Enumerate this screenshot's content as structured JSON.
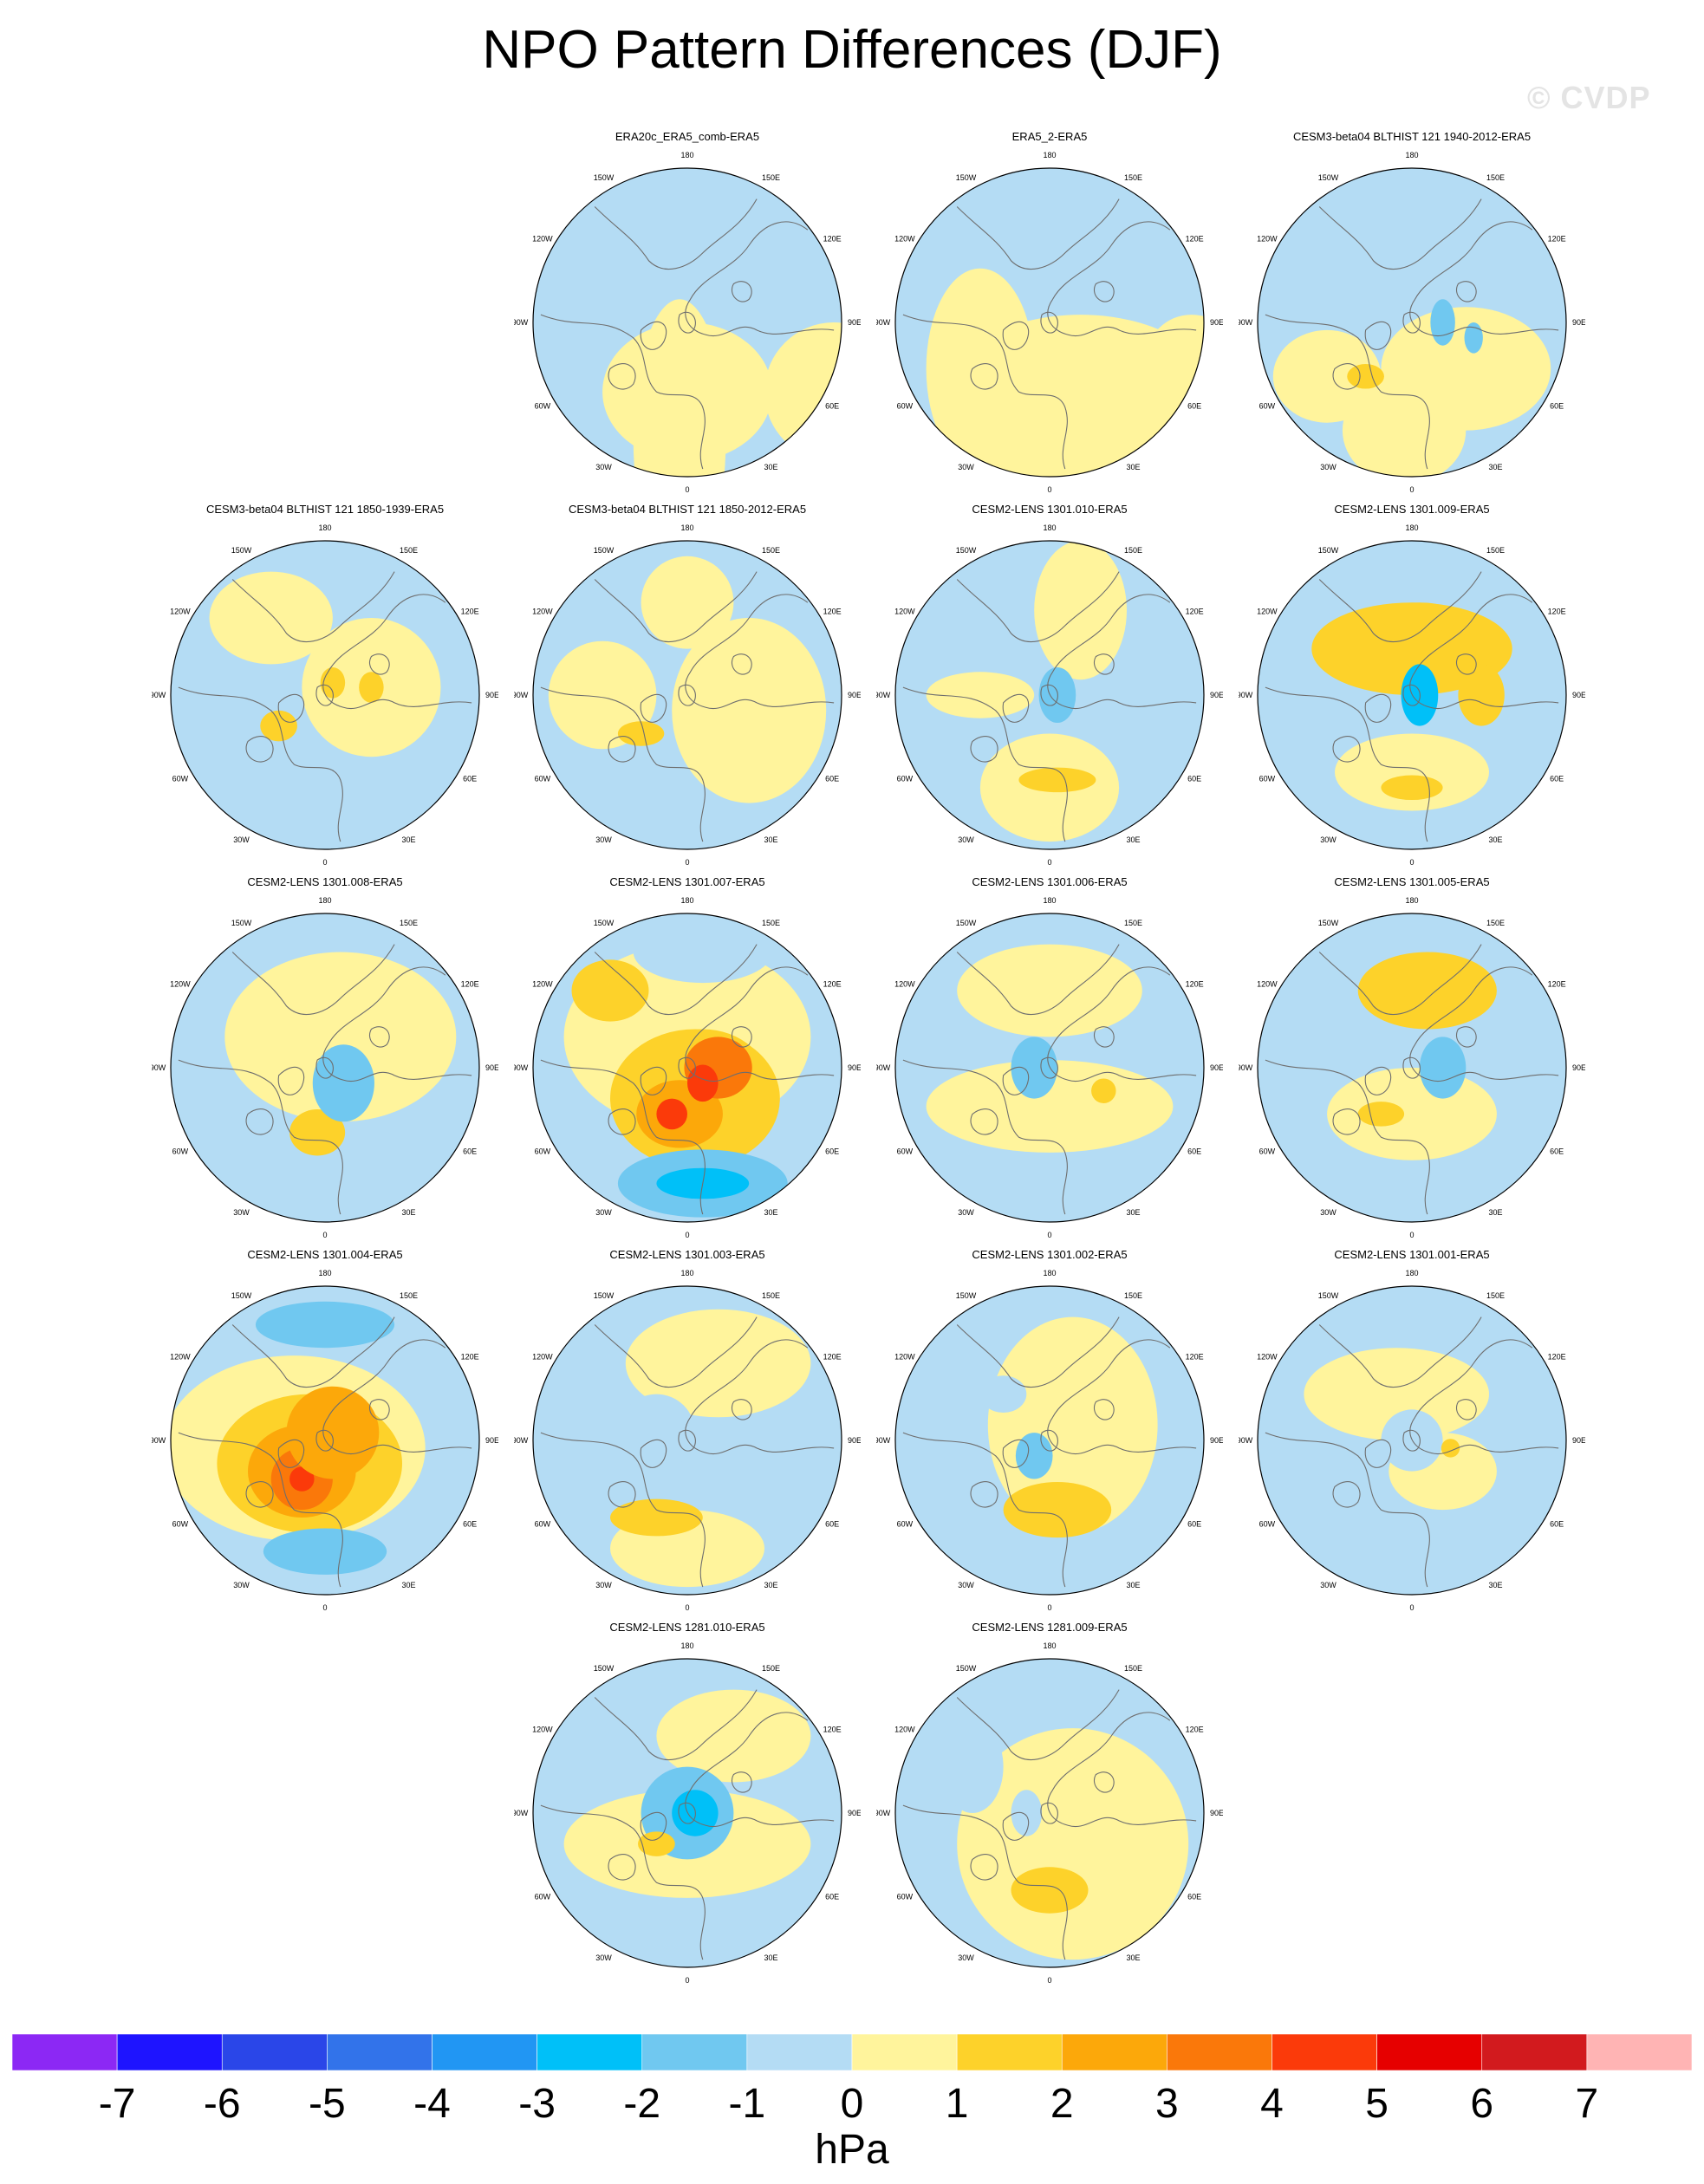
{
  "title": "NPO Pattern Differences (DJF)",
  "watermark": "© CVDP",
  "units": "hPa",
  "colorbar": {
    "labels": [
      "-7",
      "-6",
      "-5",
      "-4",
      "-3",
      "-2",
      "-1",
      "0",
      "1",
      "2",
      "3",
      "4",
      "5",
      "6",
      "7"
    ],
    "colors": [
      "#8c28f4",
      "#1e14ff",
      "#2a46e8",
      "#3273ea",
      "#2196f3",
      "#00c0f8",
      "#70c8f0",
      "#b4dcf4",
      "#fff49c",
      "#fdd22a",
      "#fca80a",
      "#fa780a",
      "#fb3a0a",
      "#e60000",
      "#d21a1e",
      "#ffb4b4"
    ]
  },
  "lon_labels": [
    "180",
    "150E",
    "120E",
    "90E",
    "60E",
    "30E",
    "0",
    "30W",
    "60W",
    "90W",
    "120W",
    "150W"
  ],
  "colors": {
    "land_line": "#6e6e6e",
    "rim": "#000000"
  },
  "panels": [
    {
      "title": "ERA20c_ERA5_comb-ERA5",
      "blobs": [
        [
          0.85,
          0.0,
          0.45,
          0.55,
          0.45,
          0
        ],
        [
          0.0,
          -0.05,
          0.75,
          0.3,
          0.9,
          0
        ],
        [
          0.75,
          0.95,
          0.45,
          0.45,
          0.45,
          0
        ]
      ]
    },
    {
      "title": "ERA5_2-ERA5",
      "blobs": [
        [
          0.9,
          0.2,
          0.5,
          0.9,
          0.55,
          0
        ],
        [
          0.5,
          -0.45,
          0.3,
          0.35,
          0.65,
          0
        ],
        [
          0.1,
          0.92,
          0.25,
          0.3,
          0.3,
          0
        ]
      ]
    },
    {
      "title": "CESM3-beta04 BLTHIST 121 1940-2012-ERA5",
      "blobs": [
        [
          0.85,
          0.35,
          0.3,
          0.55,
          0.4,
          0
        ],
        [
          0.85,
          -0.55,
          0.35,
          0.35,
          0.3,
          0
        ],
        [
          0.9,
          -0.05,
          0.7,
          0.4,
          0.35,
          0
        ],
        [
          1.6,
          -0.3,
          0.35,
          0.12,
          0.08,
          0
        ],
        [
          -1.2,
          0.2,
          0.0,
          0.08,
          0.15,
          0
        ],
        [
          -1.5,
          0.4,
          0.1,
          0.06,
          0.1,
          0
        ]
      ]
    },
    {
      "title": "CESM3-beta04 BLTHIST 121 1850-1939-ERA5",
      "blobs": [
        [
          -0.8,
          -0.1,
          0.68,
          0.3,
          0.1,
          0
        ],
        [
          0.9,
          0.3,
          -0.05,
          0.45,
          0.45,
          0
        ],
        [
          0.9,
          -0.35,
          -0.5,
          0.4,
          0.3,
          0
        ],
        [
          1.1,
          -0.3,
          0.2,
          0.12,
          0.1,
          0
        ],
        [
          1.1,
          0.05,
          -0.08,
          0.08,
          0.1,
          0
        ],
        [
          1.1,
          0.3,
          -0.05,
          0.08,
          0.1,
          0
        ]
      ]
    },
    {
      "title": "CESM3-beta04 BLTHIST 121 1850-2012-ERA5",
      "blobs": [
        [
          0.9,
          0.4,
          0.1,
          0.5,
          0.6,
          0
        ],
        [
          0.9,
          -0.55,
          0.0,
          0.35,
          0.35,
          0
        ],
        [
          0.8,
          0.0,
          -0.6,
          0.3,
          0.3,
          0
        ],
        [
          1.1,
          -0.3,
          0.25,
          0.15,
          0.08,
          0
        ]
      ]
    },
    {
      "title": "CESM2-LENS 1301.010-ERA5",
      "blobs": [
        [
          0.9,
          0.0,
          0.6,
          0.45,
          0.35,
          0
        ],
        [
          0.9,
          0.2,
          -0.55,
          0.3,
          0.45,
          0
        ],
        [
          0.6,
          -0.45,
          0.0,
          0.35,
          0.15,
          0
        ],
        [
          1.2,
          0.05,
          0.55,
          0.25,
          0.08,
          0
        ],
        [
          -1.2,
          0.05,
          0.0,
          0.12,
          0.18,
          0
        ]
      ]
    },
    {
      "title": "CESM2-LENS 1301.009-ERA5",
      "blobs": [
        [
          0.9,
          0.0,
          0.5,
          0.5,
          0.25,
          0
        ],
        [
          1.0,
          0.0,
          -0.3,
          0.65,
          0.3,
          0
        ],
        [
          1.2,
          0.45,
          0.0,
          0.15,
          0.2,
          0
        ],
        [
          1.2,
          0.05,
          -0.5,
          0.25,
          0.1,
          0
        ],
        [
          -2.2,
          0.05,
          0.0,
          0.12,
          0.2,
          0
        ],
        [
          1.1,
          0.0,
          0.6,
          0.2,
          0.08,
          0
        ]
      ]
    },
    {
      "title": "CESM2-LENS 1301.008-ERA5",
      "blobs": [
        [
          0.9,
          0.1,
          -0.2,
          0.75,
          0.55,
          0
        ],
        [
          -1.0,
          -0.45,
          0.45,
          0.2,
          0.2,
          0
        ],
        [
          1.8,
          -0.05,
          0.42,
          0.18,
          0.15,
          0
        ],
        [
          -1.7,
          0.12,
          0.1,
          0.2,
          0.25,
          0
        ]
      ]
    },
    {
      "title": "CESM2-LENS 1301.007-ERA5",
      "blobs": [
        [
          0.8,
          0.0,
          -0.2,
          0.8,
          0.6,
          0
        ],
        [
          1.0,
          0.05,
          0.2,
          0.55,
          0.45,
          0
        ],
        [
          1.8,
          0.1,
          0.15,
          0.45,
          0.4,
          0
        ],
        [
          2.8,
          -0.05,
          0.3,
          0.28,
          0.22,
          0
        ],
        [
          3.5,
          0.2,
          0.0,
          0.22,
          0.2,
          0
        ],
        [
          4.6,
          -0.1,
          0.3,
          0.1,
          0.1,
          0
        ],
        [
          4.6,
          0.1,
          0.1,
          0.1,
          0.12,
          0
        ],
        [
          -1.4,
          0.1,
          0.75,
          0.55,
          0.22,
          0
        ],
        [
          -2.4,
          0.1,
          0.75,
          0.3,
          0.1,
          0
        ],
        [
          -1.0,
          0.1,
          -0.75,
          0.45,
          0.2,
          0
        ],
        [
          1.0,
          -0.5,
          -0.5,
          0.25,
          0.2,
          0
        ]
      ]
    },
    {
      "title": "CESM2-LENS 1301.006-ERA5",
      "blobs": [
        [
          0.6,
          0.0,
          0.25,
          0.8,
          0.3,
          0
        ],
        [
          0.6,
          0.0,
          -0.5,
          0.6,
          0.3,
          0
        ],
        [
          -1.2,
          -0.1,
          0.0,
          0.15,
          0.2,
          0
        ],
        [
          1.2,
          0.35,
          0.15,
          0.08,
          0.08,
          0
        ]
      ]
    },
    {
      "title": "CESM2-LENS 1301.005-ERA5",
      "blobs": [
        [
          0.8,
          0.0,
          0.3,
          0.55,
          0.3,
          0
        ],
        [
          1.0,
          0.1,
          -0.5,
          0.45,
          0.25,
          0
        ],
        [
          1.2,
          0.05,
          -0.55,
          0.2,
          0.1,
          0
        ],
        [
          -1.9,
          0.2,
          0.0,
          0.15,
          0.2,
          0
        ],
        [
          1.1,
          -0.2,
          0.3,
          0.15,
          0.08,
          0
        ]
      ]
    },
    {
      "title": "CESM2-LENS 1301.004-ERA5",
      "blobs": [
        [
          0.8,
          -0.2,
          0.05,
          0.85,
          0.6,
          0
        ],
        [
          1.0,
          -0.1,
          0.15,
          0.6,
          0.45,
          0
        ],
        [
          2.0,
          -0.15,
          0.2,
          0.35,
          0.3,
          0
        ],
        [
          3.0,
          -0.15,
          0.25,
          0.2,
          0.2,
          0
        ],
        [
          4.6,
          -0.15,
          0.25,
          0.08,
          0.08,
          0
        ],
        [
          2.0,
          0.05,
          -0.05,
          0.3,
          0.3,
          0
        ],
        [
          -2.0,
          0.0,
          0.72,
          0.4,
          0.15,
          0
        ],
        [
          -1.4,
          0.0,
          -0.75,
          0.45,
          0.15,
          0
        ]
      ]
    },
    {
      "title": "CESM2-LENS 1301.003-ERA5",
      "blobs": [
        [
          0.8,
          0.0,
          0.7,
          0.5,
          0.25,
          0
        ],
        [
          0.7,
          0.2,
          -0.5,
          0.6,
          0.35,
          0
        ],
        [
          1.1,
          -0.2,
          0.5,
          0.3,
          0.12,
          0
        ],
        [
          -1.0,
          -0.2,
          -0.05,
          0.25,
          0.25,
          0
        ]
      ]
    },
    {
      "title": "CESM2-LENS 1301.002-ERA5",
      "blobs": [
        [
          0.7,
          0.15,
          -0.1,
          0.55,
          0.7,
          0
        ],
        [
          1.3,
          0.05,
          0.45,
          0.35,
          0.18,
          0
        ],
        [
          -1.6,
          -0.1,
          0.1,
          0.12,
          0.15,
          0
        ],
        [
          -0.9,
          -0.3,
          -0.3,
          0.15,
          0.12,
          0
        ]
      ]
    },
    {
      "title": "CESM2-LENS 1301.001-ERA5",
      "blobs": [
        [
          0.7,
          -0.1,
          -0.3,
          0.6,
          0.3,
          0
        ],
        [
          0.7,
          0.2,
          0.2,
          0.35,
          0.25,
          0
        ],
        [
          -0.9,
          0.0,
          0.0,
          0.2,
          0.2,
          0
        ],
        [
          1.1,
          0.25,
          0.05,
          0.06,
          0.06,
          0
        ],
        [
          -0.9,
          -0.15,
          0.5,
          0.12,
          0.08,
          0
        ]
      ]
    },
    {
      "title": "CESM2-LENS 1281.010-ERA5",
      "blobs": [
        [
          0.8,
          0.0,
          0.2,
          0.8,
          0.35,
          0
        ],
        [
          0.8,
          0.3,
          -0.5,
          0.5,
          0.3,
          0
        ],
        [
          -1.5,
          0.0,
          0.0,
          0.3,
          0.3,
          0
        ],
        [
          -2.1,
          0.05,
          0.0,
          0.15,
          0.15,
          0
        ],
        [
          1.1,
          -0.2,
          0.2,
          0.12,
          0.08,
          0
        ]
      ]
    },
    {
      "title": "CESM2-LENS 1281.009-ERA5",
      "blobs": [
        [
          0.9,
          0.15,
          0.2,
          0.75,
          0.75,
          0
        ],
        [
          1.2,
          0.0,
          0.5,
          0.25,
          0.15,
          0
        ],
        [
          -1.0,
          -0.5,
          -0.3,
          0.2,
          0.3,
          0
        ],
        [
          -0.8,
          -0.15,
          0.0,
          0.1,
          0.15,
          0
        ]
      ]
    }
  ]
}
